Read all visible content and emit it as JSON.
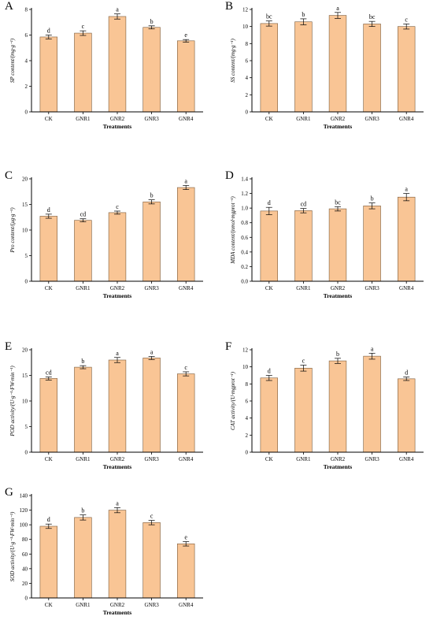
{
  "style": {
    "bar_fill": "#f9c595",
    "bar_stroke": "#7a5a3a",
    "axis_color": "#000000"
  },
  "chart_data": [
    {
      "id": "pA",
      "panel": "A",
      "type": "bar",
      "categories": [
        "CK",
        "GNR1",
        "GNR2",
        "GNR3",
        "GNR4"
      ],
      "values": [
        5.85,
        6.15,
        7.45,
        6.6,
        5.55
      ],
      "errors": [
        0.15,
        0.18,
        0.2,
        0.12,
        0.1
      ],
      "letters": [
        "d",
        "c",
        "a",
        "b",
        "e"
      ],
      "xlabel": "Treatments",
      "ylabel": "SP content/(mg·g⁻¹)",
      "ylim": [
        0,
        8
      ],
      "yticks": [
        0,
        2,
        4,
        6,
        8
      ]
    },
    {
      "id": "pB",
      "panel": "B",
      "type": "bar",
      "categories": [
        "CK",
        "GNR1",
        "GNR2",
        "GNR3",
        "GNR4"
      ],
      "values": [
        10.35,
        10.55,
        11.3,
        10.3,
        10.0
      ],
      "errors": [
        0.3,
        0.35,
        0.35,
        0.3,
        0.3
      ],
      "letters": [
        "bc",
        "b",
        "a",
        "bc",
        "c"
      ],
      "xlabel": "Treatments",
      "ylabel": "SS content/(mg·g⁻¹)",
      "ylim": [
        0,
        12
      ],
      "yticks": [
        0,
        2,
        4,
        6,
        8,
        10,
        12
      ]
    },
    {
      "id": "pC",
      "panel": "C",
      "type": "bar",
      "categories": [
        "CK",
        "GNR1",
        "GNR2",
        "GNR3",
        "GNR4"
      ],
      "values": [
        12.7,
        11.9,
        13.4,
        15.5,
        18.3
      ],
      "errors": [
        0.4,
        0.3,
        0.3,
        0.4,
        0.4
      ],
      "letters": [
        "d",
        "cd",
        "c",
        "b",
        "a"
      ],
      "xlabel": "Treatments",
      "ylabel": "Pro content/(μg·g⁻¹)",
      "ylim": [
        0,
        20
      ],
      "yticks": [
        0,
        5,
        10,
        15,
        20
      ]
    },
    {
      "id": "pD",
      "panel": "D",
      "type": "bar",
      "categories": [
        "CK",
        "GNR1",
        "GNR2",
        "GNR3",
        "GNR4"
      ],
      "values": [
        0.96,
        0.965,
        0.99,
        1.03,
        1.15
      ],
      "errors": [
        0.05,
        0.03,
        0.03,
        0.04,
        0.05
      ],
      "letters": [
        "d",
        "cd",
        "bc",
        "b",
        "a"
      ],
      "xlabel": "Treatments",
      "ylabel": "MDA content/(nmol·mgprot⁻¹)",
      "ylim": [
        0,
        1.4
      ],
      "yticks": [
        0,
        0.2,
        0.4,
        0.6,
        0.8,
        1.0,
        1.2,
        1.4
      ]
    },
    {
      "id": "pE",
      "panel": "E",
      "type": "bar",
      "categories": [
        "CK",
        "GNR1",
        "GNR2",
        "GNR3",
        "GNR4"
      ],
      "values": [
        14.4,
        16.6,
        18.0,
        18.4,
        15.3
      ],
      "errors": [
        0.3,
        0.3,
        0.5,
        0.3,
        0.4
      ],
      "letters": [
        "cd",
        "b",
        "a",
        "a",
        "c"
      ],
      "xlabel": "Treatments",
      "ylabel": "POD activity/(U·g⁻¹·FW·min⁻¹)",
      "ylim": [
        0,
        20
      ],
      "yticks": [
        0,
        5,
        10,
        15,
        20
      ]
    },
    {
      "id": "pF",
      "panel": "F",
      "type": "bar",
      "categories": [
        "CK",
        "GNR1",
        "GNR2",
        "GNR3",
        "GNR4"
      ],
      "values": [
        8.7,
        9.85,
        10.7,
        11.25,
        8.6
      ],
      "errors": [
        0.3,
        0.35,
        0.3,
        0.35,
        0.2
      ],
      "letters": [
        "d",
        "c",
        "b",
        "a",
        "d"
      ],
      "xlabel": "Treatments",
      "ylabel": "CAT activity/(U·mgprot⁻¹)",
      "ylim": [
        0,
        12
      ],
      "yticks": [
        0,
        2,
        4,
        6,
        8,
        10,
        12
      ]
    },
    {
      "id": "pG",
      "panel": "G",
      "type": "bar",
      "categories": [
        "CK",
        "GNR1",
        "GNR2",
        "GNR3",
        "GNR4"
      ],
      "values": [
        98,
        110,
        120,
        103,
        74
      ],
      "errors": [
        3,
        3.5,
        3.5,
        3,
        3
      ],
      "letters": [
        "d",
        "b",
        "a",
        "c",
        "e"
      ],
      "xlabel": "Treatments",
      "ylabel": "SOD activity/(U·g⁻¹·FW·min⁻¹)",
      "ylim": [
        0,
        140
      ],
      "yticks": [
        0,
        20,
        40,
        60,
        80,
        100,
        120,
        140
      ]
    }
  ]
}
